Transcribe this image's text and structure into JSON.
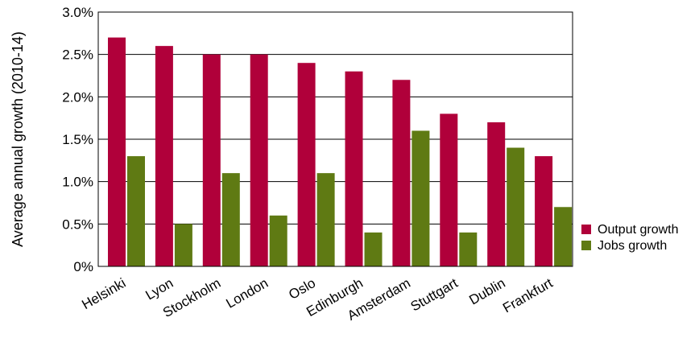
{
  "chart_data": {
    "type": "bar",
    "ylabel": "Average annual growth (2010-14)",
    "categories": [
      "Helsinki",
      "Lyon",
      "Stockholm",
      "London",
      "Oslo",
      "Edinburgh",
      "Amsterdam",
      "Stuttgart",
      "Dublin",
      "Frankfurt"
    ],
    "series": [
      {
        "name": "Output growth",
        "color": "#b0003a",
        "values": [
          2.7,
          2.6,
          2.5,
          2.5,
          2.4,
          2.3,
          2.2,
          1.8,
          1.7,
          1.3
        ]
      },
      {
        "name": "Jobs growth",
        "color": "#5f7a13",
        "values": [
          1.3,
          0.5,
          1.1,
          0.6,
          1.1,
          0.4,
          1.6,
          0.4,
          1.4,
          0.7
        ]
      }
    ],
    "ylim": [
      0,
      3.0
    ],
    "yticks": [
      0,
      0.5,
      1.0,
      1.5,
      2.0,
      2.5,
      3.0
    ],
    "ytick_labels": [
      "0%",
      "0.5%",
      "1.0%",
      "1.5%",
      "2.0%",
      "2.5%",
      "3.0%"
    ],
    "grid": "horizontal",
    "legend_position": "right"
  }
}
